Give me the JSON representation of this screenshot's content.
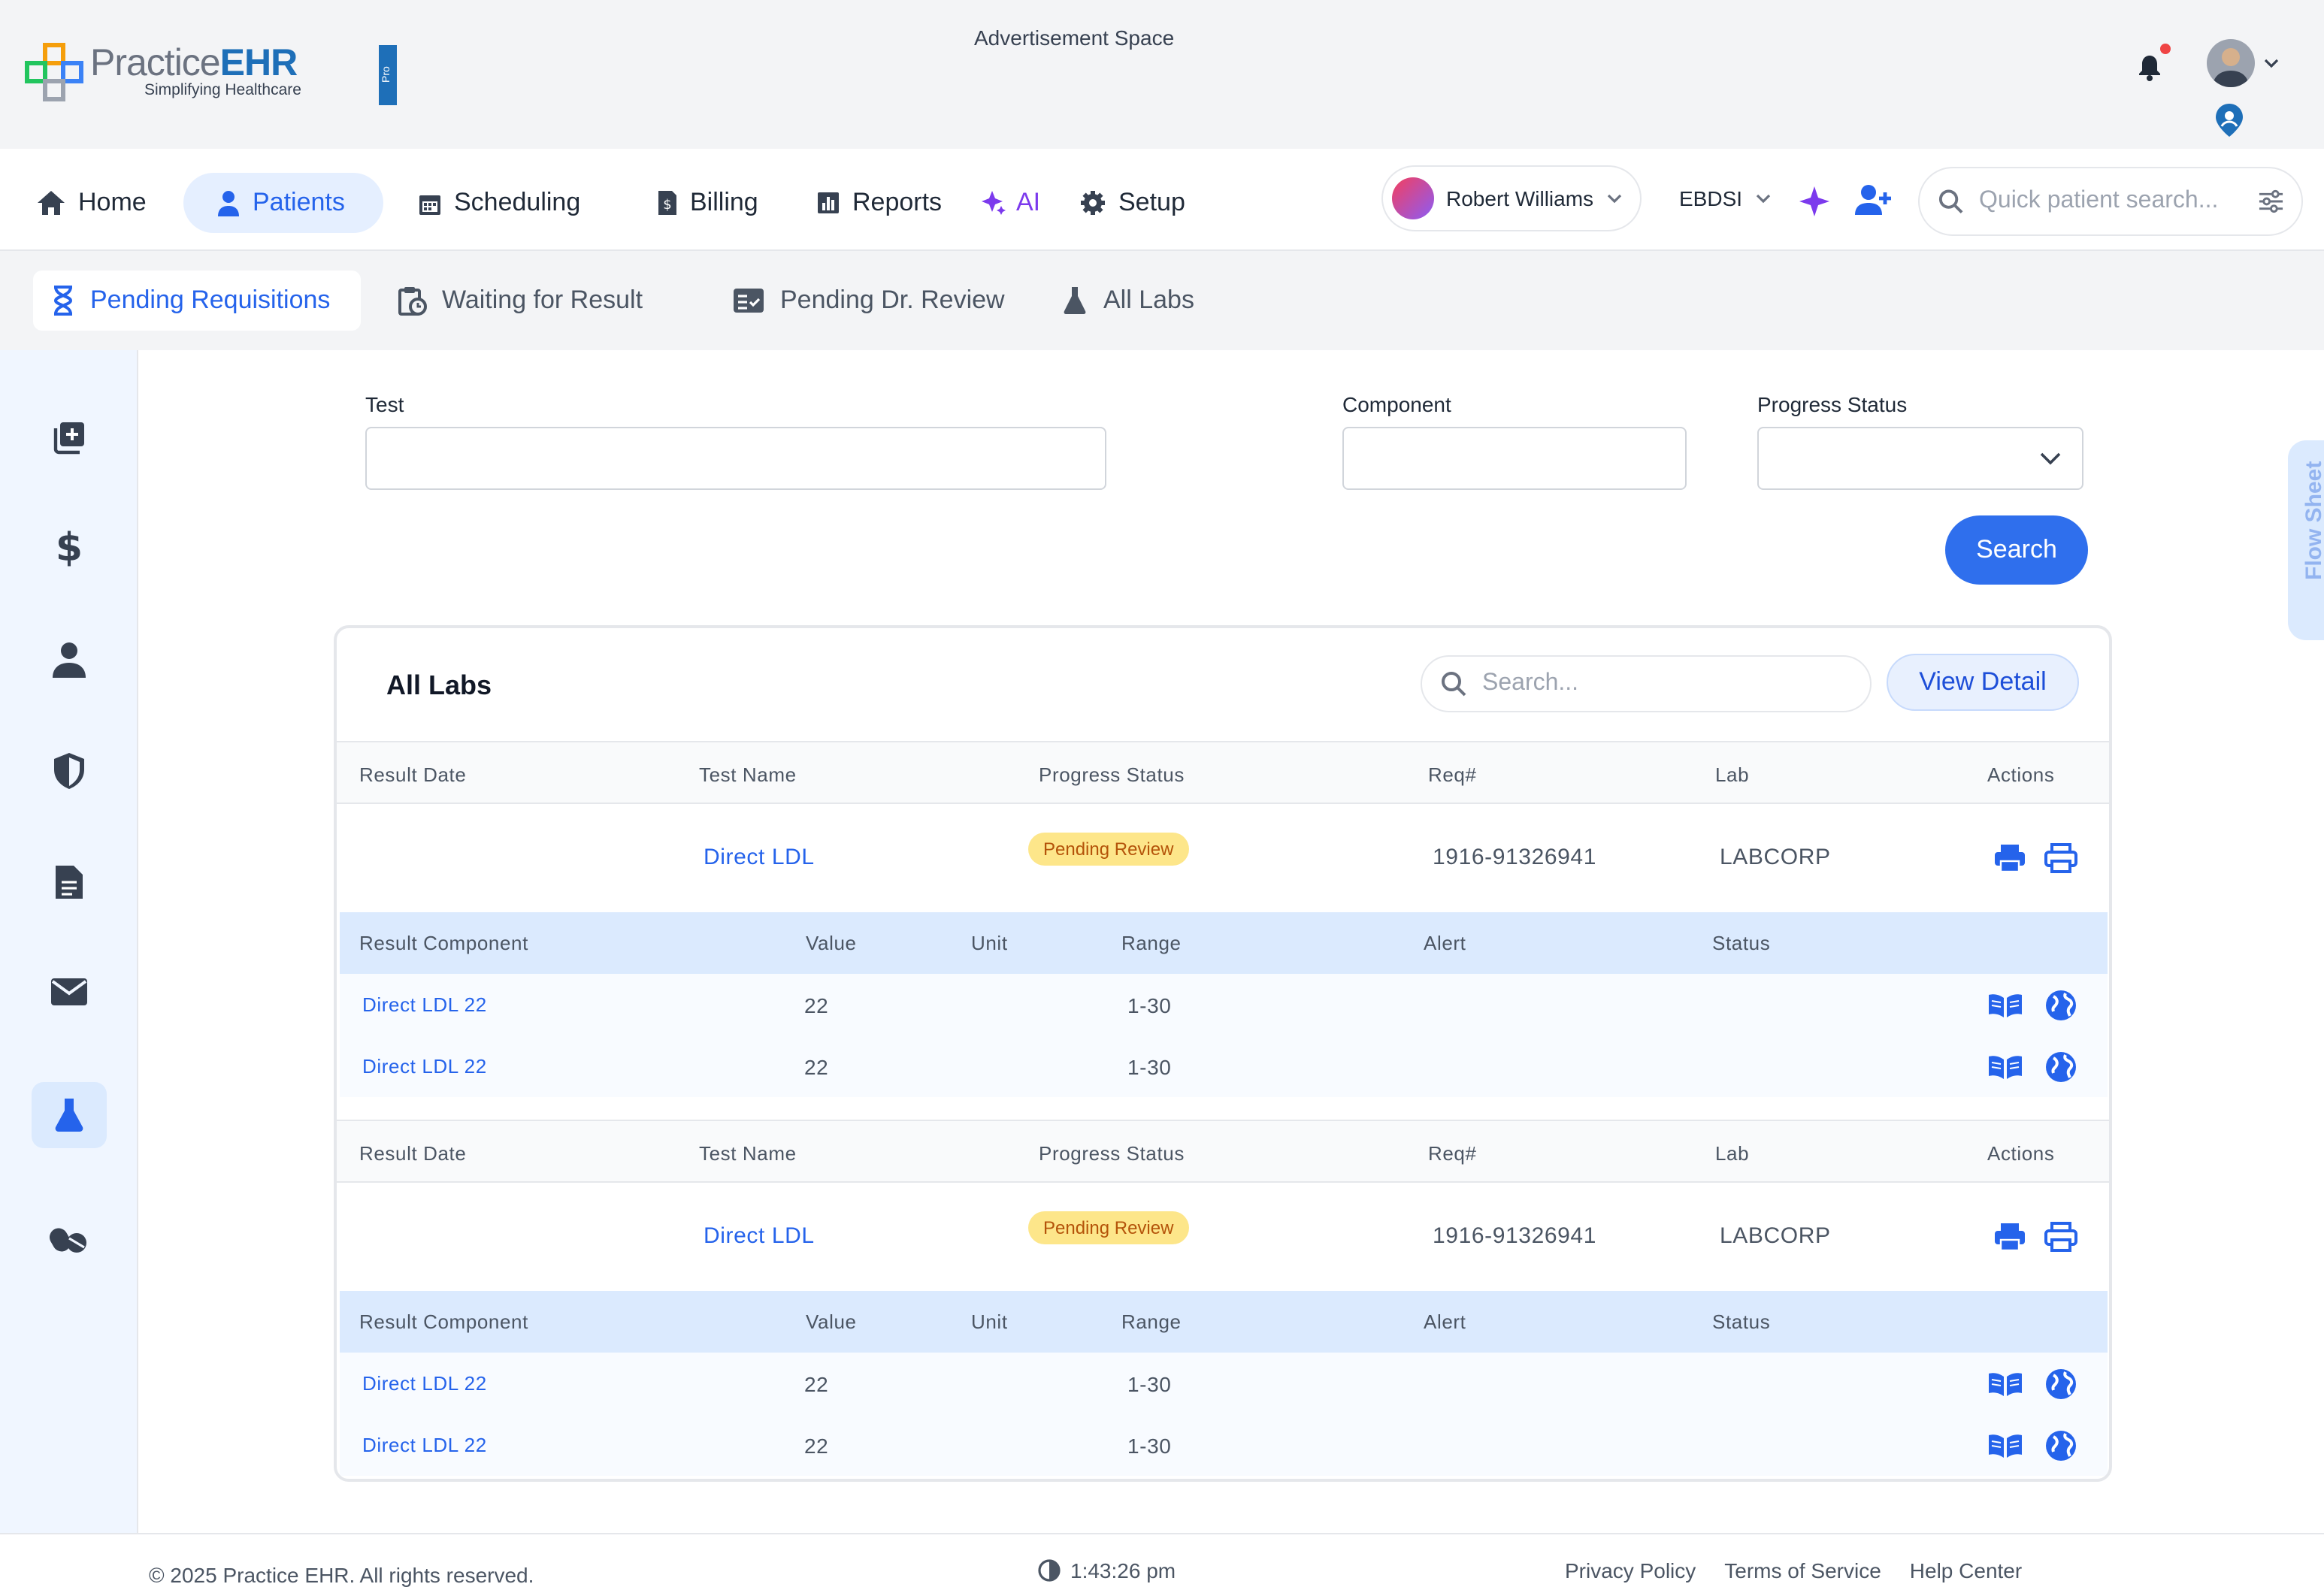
{
  "brand": {
    "name_prefix": "Practice",
    "name_suffix": "EHR",
    "tagline": "Simplifying Healthcare",
    "badge": "Pro"
  },
  "header": {
    "ad_text": "Advertisement Space"
  },
  "nav": {
    "items": [
      {
        "label": "Home",
        "icon": "home-icon"
      },
      {
        "label": "Patients",
        "icon": "patient-icon",
        "active": true
      },
      {
        "label": "Scheduling",
        "icon": "calendar-icon"
      },
      {
        "label": "Billing",
        "icon": "billing-icon"
      },
      {
        "label": "Reports",
        "icon": "chart-icon"
      },
      {
        "label": "AI",
        "icon": "sparkle-icon"
      },
      {
        "label": "Setup",
        "icon": "gear-icon"
      }
    ],
    "provider": "Robert Williams",
    "facility": "EBDSI",
    "quick_search_placeholder": "Quick patient search..."
  },
  "sub_tabs": [
    {
      "label": "Pending Requisitions",
      "active": true
    },
    {
      "label": "Waiting for Result"
    },
    {
      "label": "Pending Dr. Review"
    },
    {
      "label": "All Labs"
    }
  ],
  "filters": {
    "test_label": "Test",
    "test_value": "",
    "component_label": "Component",
    "component_value": "",
    "progress_status_label": "Progress Status",
    "progress_status_value": "",
    "search_button": "Search"
  },
  "flow_sheet": "Flow Sheet",
  "card": {
    "title": "All Labs",
    "search_placeholder": "Search...",
    "view_detail": "View Detail",
    "result_headers": [
      "Result Date",
      "Test Name",
      "Progress Status",
      "Req#",
      "Lab",
      "Actions"
    ],
    "component_headers": [
      "Result Component",
      "Value",
      "Unit",
      "Range",
      "Alert",
      "Status"
    ],
    "results": [
      {
        "result_date": "",
        "test_name": "Direct LDL",
        "progress_status": "Pending Review",
        "req": "1916-91326941",
        "lab": "LABCORP",
        "components": [
          {
            "name": "Direct LDL 22",
            "value": "22",
            "unit": "",
            "range": "1-30",
            "alert": "",
            "status": ""
          },
          {
            "name": "Direct LDL 22",
            "value": "22",
            "unit": "",
            "range": "1-30",
            "alert": "",
            "status": ""
          }
        ]
      },
      {
        "result_date": "",
        "test_name": "Direct LDL",
        "progress_status": "Pending Review",
        "req": "1916-91326941",
        "lab": "LABCORP",
        "components": [
          {
            "name": "Direct LDL 22",
            "value": "22",
            "unit": "",
            "range": "1-30",
            "alert": "",
            "status": ""
          },
          {
            "name": "Direct LDL 22",
            "value": "22",
            "unit": "",
            "range": "1-30",
            "alert": "",
            "status": ""
          }
        ]
      }
    ]
  },
  "footer": {
    "copyright": "© 2025 Practice EHR. All rights reserved.",
    "time": "1:43:26 pm",
    "links": [
      "Privacy Policy",
      "Terms of Service",
      "Help Center"
    ]
  },
  "colors": {
    "primary": "#2563eb",
    "button": "#2f6fed",
    "badge_bg": "#fde68a",
    "badge_text": "#b45309",
    "ai": "#7c3aed"
  }
}
